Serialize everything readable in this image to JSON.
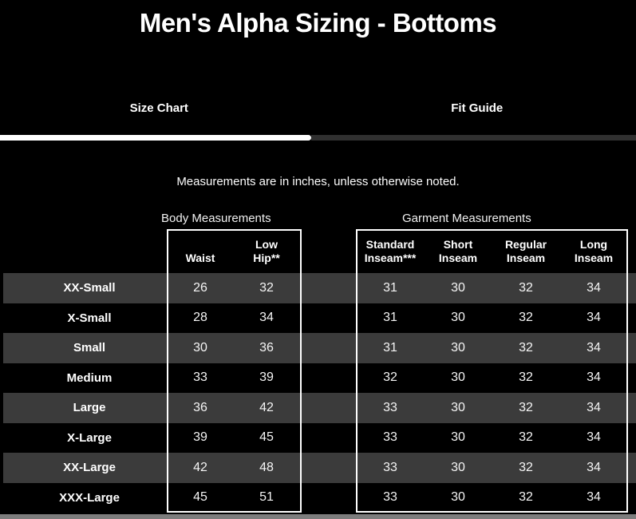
{
  "page": {
    "title": "Men's Alpha Sizing - Bottoms"
  },
  "tabs": [
    {
      "label": "Size Chart",
      "active": true
    },
    {
      "label": "Fit Guide",
      "active": false
    }
  ],
  "note": "Measurements are in inches, unless otherwise noted.",
  "table": {
    "group_headers": [
      {
        "label": "Body Measurements"
      },
      {
        "label": "Garment Measurements"
      }
    ],
    "columns": [
      {
        "id": "size",
        "label": ""
      },
      {
        "id": "waist",
        "label": "Waist"
      },
      {
        "id": "low_hip",
        "label": "Low Hip**"
      },
      {
        "id": "standard_inseam",
        "label": "Standard Inseam***"
      },
      {
        "id": "short_inseam",
        "label": "Short Inseam"
      },
      {
        "id": "regular_inseam",
        "label": "Regular Inseam"
      },
      {
        "id": "long_inseam",
        "label": "Long Inseam"
      }
    ],
    "rows": [
      {
        "size": "XX-Small",
        "values": [
          "26",
          "32",
          "31",
          "30",
          "32",
          "34"
        ]
      },
      {
        "size": "X-Small",
        "values": [
          "28",
          "34",
          "31",
          "30",
          "32",
          "34"
        ]
      },
      {
        "size": "Small",
        "values": [
          "30",
          "36",
          "31",
          "30",
          "32",
          "34"
        ]
      },
      {
        "size": "Medium",
        "values": [
          "33",
          "39",
          "32",
          "30",
          "32",
          "34"
        ]
      },
      {
        "size": "Large",
        "values": [
          "36",
          "42",
          "33",
          "30",
          "32",
          "34"
        ]
      },
      {
        "size": "X-Large",
        "values": [
          "39",
          "45",
          "33",
          "30",
          "32",
          "34"
        ]
      },
      {
        "size": "XX-Large",
        "values": [
          "42",
          "48",
          "33",
          "30",
          "32",
          "34"
        ]
      },
      {
        "size": "XXX-Large",
        "values": [
          "45",
          "51",
          "33",
          "30",
          "32",
          "34"
        ]
      }
    ]
  },
  "colors": {
    "background": "#000000",
    "row_alternate": "#3b3b3b",
    "text": "#ffffff",
    "tab_underline_active": "#ffffff",
    "tab_underline_inactive": "#303030",
    "box_border": "#ffffff",
    "scrollbar": "#7d7d7d"
  }
}
